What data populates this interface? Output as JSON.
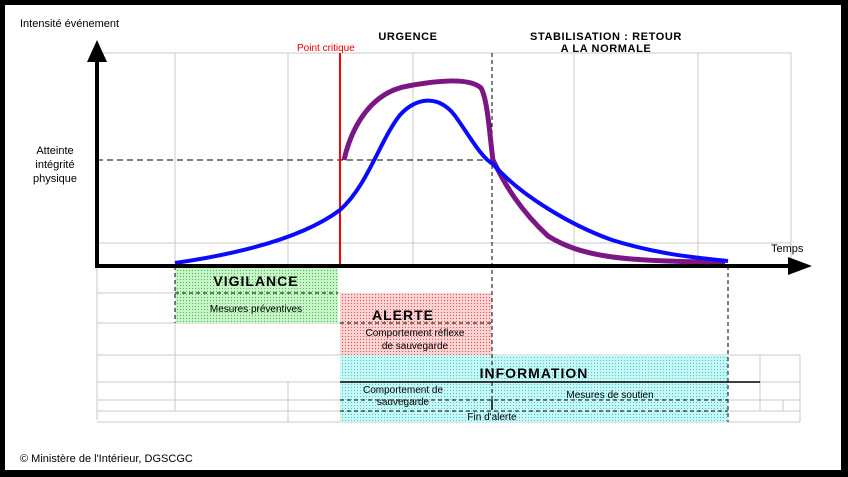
{
  "axes": {
    "y_label": "Intensité événement",
    "x_label": "Temps",
    "threshold_label": [
      "Atteinte",
      "intégrité",
      "physique"
    ]
  },
  "markers": {
    "critical_point": "Point critique",
    "urgence": "URGENCE",
    "stabilisation": [
      "STABILISATION : RETOUR",
      "A LA NORMALE"
    ]
  },
  "phases": {
    "vigilance": {
      "title": "VIGILANCE",
      "detail": "Mesures préventives"
    },
    "alerte": {
      "title": "ALERTE",
      "detail": [
        "Comportement réflexe",
        "de sauvegarde"
      ]
    },
    "information": {
      "title": "INFORMATION",
      "detail_left": [
        "Comportement de",
        "sauvegarde"
      ],
      "detail_right": "Mesures de soutien",
      "end": "Fin d'alerte"
    }
  },
  "colors": {
    "blue_curve": "#0a0aff",
    "purple_curve": "#7b1685",
    "critical_line": "#ff0000",
    "vigilance": "#8fe28f",
    "alerte": "#f4a9a9",
    "information": "#a9f0f0"
  },
  "copyright": "© Ministère de l'Intérieur, DGSCGC"
}
